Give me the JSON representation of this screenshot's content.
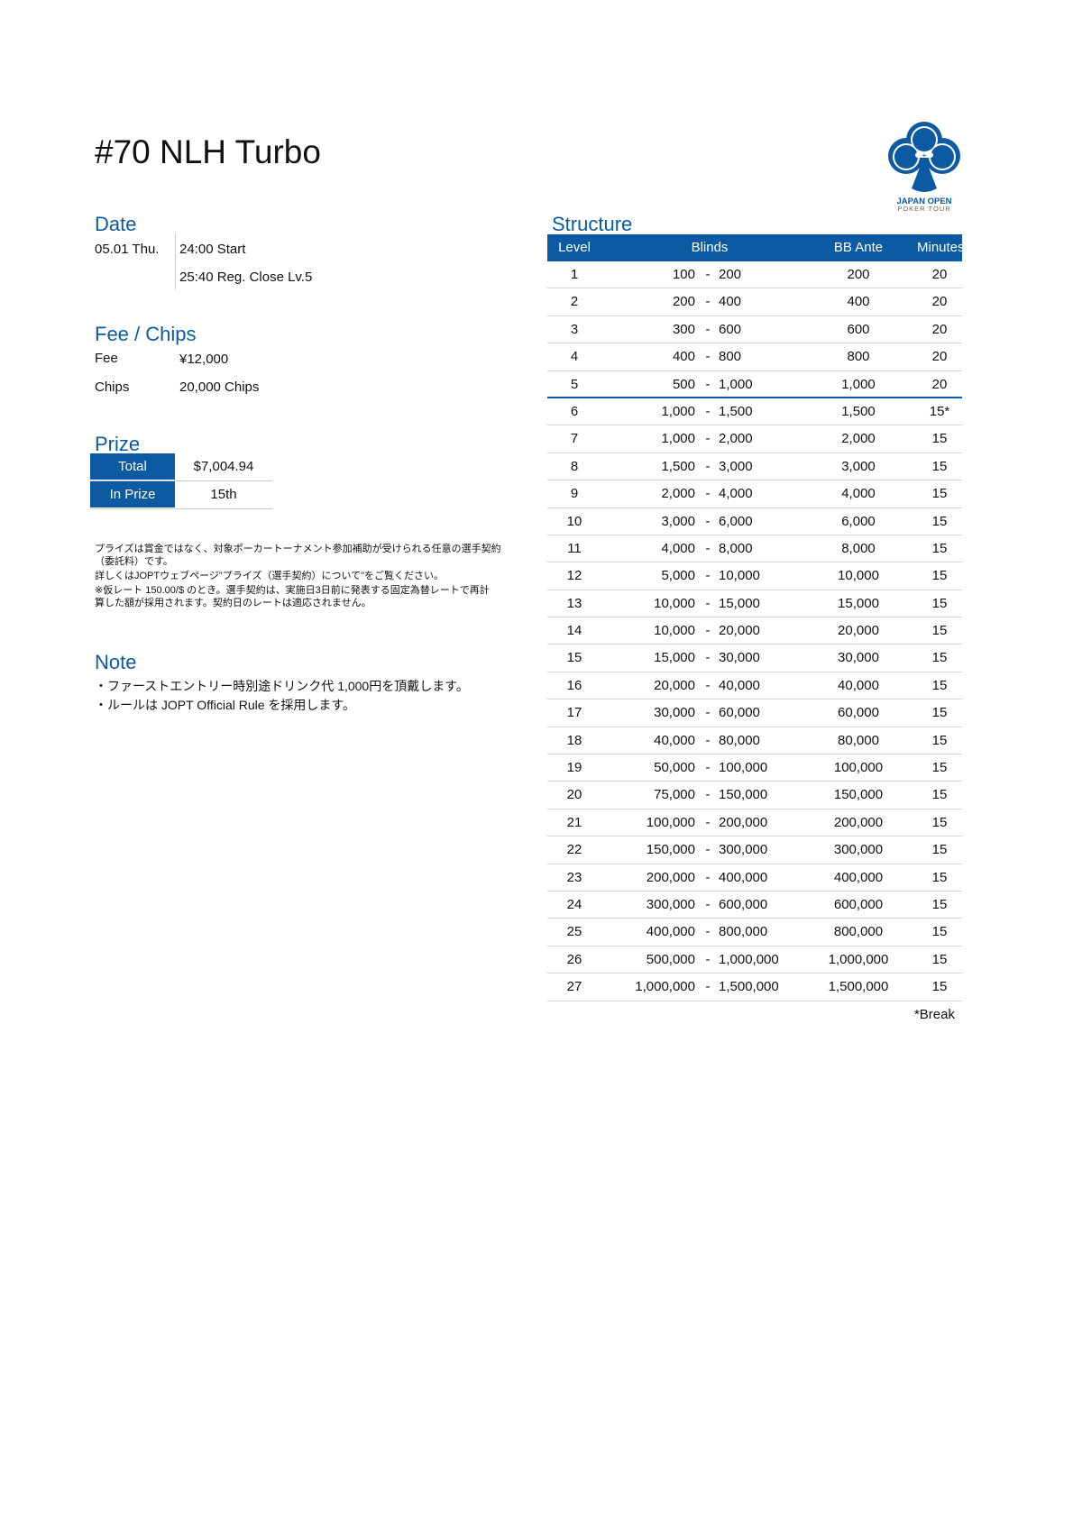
{
  "title": "#70 NLH Turbo",
  "logo": {
    "line1": "JAPAN OPEN",
    "line2": "POKER TOUR",
    "color": "#0b5aa2"
  },
  "date": {
    "heading": "Date",
    "day": "05.01 Thu.",
    "start": "24:00 Start",
    "reg_close": "25:40 Reg. Close Lv.5"
  },
  "fee": {
    "heading": "Fee / Chips",
    "fee_label": "Fee",
    "fee_value": "¥12,000",
    "chips_label": "Chips",
    "chips_value": "20,000 Chips"
  },
  "prize": {
    "heading": "Prize",
    "total_label": "Total",
    "total_value": "$7,004.94",
    "inprize_label": "In Prize",
    "inprize_value": "15th"
  },
  "disclaimer": [
    "プライズは賞金ではなく、対象ポーカートーナメント参加補助が受けられる任意の選手契約",
    "（委託料）です。",
    "詳しくはJOPTウェブページ\"プライズ（選手契約）について\"をご覧ください。",
    "※仮レート 150.00/$ のとき。選手契約は、実施日3日前に発表する固定為替レートで再計",
    "算した額が採用されます。契約日のレートは適応されません。"
  ],
  "note": {
    "heading": "Note",
    "lines": [
      "・ファーストエントリー時別途ドリンク代  1,000円を頂戴します。",
      "・ルールは JOPT Official Rule を採用します。"
    ]
  },
  "structure": {
    "heading": "Structure",
    "columns": {
      "level": "Level",
      "blinds": "Blinds",
      "ante": "BB Ante",
      "minutes": "Minutes"
    },
    "rows": [
      [
        "1",
        "100",
        "200",
        "200",
        "20"
      ],
      [
        "2",
        "200",
        "400",
        "400",
        "20"
      ],
      [
        "3",
        "300",
        "600",
        "600",
        "20"
      ],
      [
        "4",
        "400",
        "800",
        "800",
        "20"
      ],
      [
        "5",
        "500",
        "1,000",
        "1,000",
        "20"
      ],
      [
        "6",
        "1,000",
        "1,500",
        "1,500",
        "15*"
      ],
      [
        "7",
        "1,000",
        "2,000",
        "2,000",
        "15"
      ],
      [
        "8",
        "1,500",
        "3,000",
        "3,000",
        "15"
      ],
      [
        "9",
        "2,000",
        "4,000",
        "4,000",
        "15"
      ],
      [
        "10",
        "3,000",
        "6,000",
        "6,000",
        "15"
      ],
      [
        "11",
        "4,000",
        "8,000",
        "8,000",
        "15"
      ],
      [
        "12",
        "5,000",
        "10,000",
        "10,000",
        "15"
      ],
      [
        "13",
        "10,000",
        "15,000",
        "15,000",
        "15"
      ],
      [
        "14",
        "10,000",
        "20,000",
        "20,000",
        "15"
      ],
      [
        "15",
        "15,000",
        "30,000",
        "30,000",
        "15"
      ],
      [
        "16",
        "20,000",
        "40,000",
        "40,000",
        "15"
      ],
      [
        "17",
        "30,000",
        "60,000",
        "60,000",
        "15"
      ],
      [
        "18",
        "40,000",
        "80,000",
        "80,000",
        "15"
      ],
      [
        "19",
        "50,000",
        "100,000",
        "100,000",
        "15"
      ],
      [
        "20",
        "75,000",
        "150,000",
        "150,000",
        "15"
      ],
      [
        "21",
        "100,000",
        "200,000",
        "200,000",
        "15"
      ],
      [
        "22",
        "150,000",
        "300,000",
        "300,000",
        "15"
      ],
      [
        "23",
        "200,000",
        "400,000",
        "400,000",
        "15"
      ],
      [
        "24",
        "300,000",
        "600,000",
        "600,000",
        "15"
      ],
      [
        "25",
        "400,000",
        "800,000",
        "800,000",
        "15"
      ],
      [
        "26",
        "500,000",
        "1,000,000",
        "1,000,000",
        "15"
      ],
      [
        "27",
        "1,000,000",
        "1,500,000",
        "1,500,000",
        "15"
      ]
    ],
    "separator": "-",
    "break_note": "*Break"
  }
}
